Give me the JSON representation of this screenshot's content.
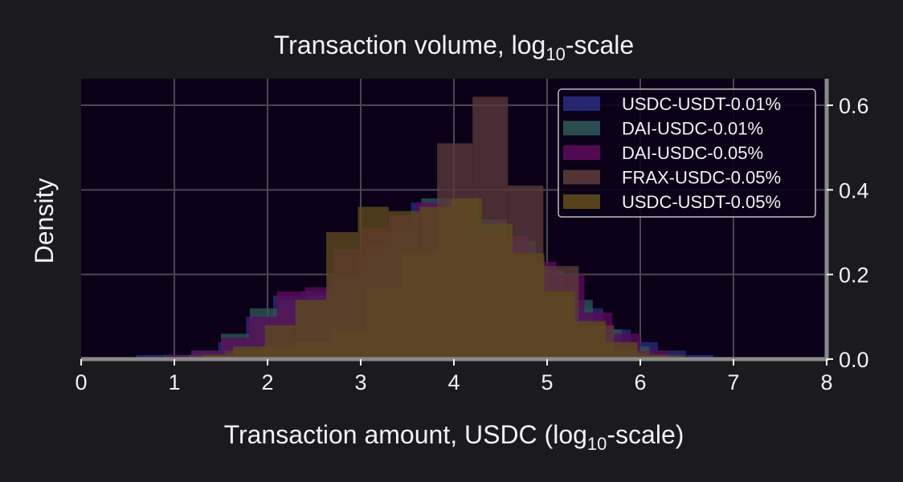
{
  "chart_data": {
    "type": "bar",
    "title": {
      "main": "Transaction volume, log",
      "sub": "10",
      "tail": "-scale"
    },
    "xlabel": {
      "main": "Transaction amount, USDC (log",
      "sub": "10",
      "tail": "-scale)"
    },
    "ylabel": "Density",
    "xlim": [
      0,
      8
    ],
    "ylim": [
      0,
      0.65
    ],
    "xticks": [
      "0",
      "1",
      "2",
      "3",
      "4",
      "5",
      "6",
      "7",
      "8"
    ],
    "yticks": [
      "0.0",
      "0.2",
      "0.4",
      "0.6"
    ],
    "grid": true,
    "legend_position": "top-right",
    "series": [
      {
        "name": "USDC-USDT-0.01%",
        "color": "#2a2a7a",
        "bins": [
          [
            0.59,
            0.88,
            0.01
          ],
          [
            0.88,
            1.18,
            0.01
          ],
          [
            1.18,
            1.47,
            0.02
          ],
          [
            1.47,
            1.77,
            0.04
          ],
          [
            1.77,
            2.06,
            0.1
          ],
          [
            2.06,
            2.36,
            0.15
          ],
          [
            2.36,
            2.65,
            0.16
          ],
          [
            2.65,
            2.95,
            0.2
          ],
          [
            2.95,
            3.24,
            0.24
          ],
          [
            3.24,
            3.54,
            0.3
          ],
          [
            3.54,
            3.83,
            0.37
          ],
          [
            3.83,
            4.13,
            0.36
          ],
          [
            4.13,
            4.42,
            0.33
          ],
          [
            4.42,
            4.72,
            0.28
          ],
          [
            4.72,
            5.01,
            0.22
          ],
          [
            5.01,
            5.31,
            0.17
          ],
          [
            5.31,
            5.6,
            0.12
          ],
          [
            5.6,
            5.9,
            0.07
          ],
          [
            5.9,
            6.19,
            0.04
          ],
          [
            6.19,
            6.49,
            0.02
          ],
          [
            6.49,
            6.78,
            0.01
          ]
        ]
      },
      {
        "name": "DAI-USDC-0.01%",
        "color": "#2d5656",
        "bins": [
          [
            0.89,
            1.2,
            0.01
          ],
          [
            1.2,
            1.5,
            0.02
          ],
          [
            1.5,
            1.81,
            0.06
          ],
          [
            1.81,
            2.12,
            0.12
          ],
          [
            2.12,
            2.42,
            0.14
          ],
          [
            2.42,
            2.73,
            0.15
          ],
          [
            2.73,
            3.04,
            0.2
          ],
          [
            3.04,
            3.34,
            0.27
          ],
          [
            3.34,
            3.65,
            0.32
          ],
          [
            3.65,
            3.96,
            0.38
          ],
          [
            3.96,
            4.26,
            0.38
          ],
          [
            4.26,
            4.57,
            0.33
          ],
          [
            4.57,
            4.88,
            0.28
          ],
          [
            4.88,
            5.18,
            0.21
          ],
          [
            5.18,
            5.49,
            0.14
          ],
          [
            5.49,
            5.8,
            0.07
          ],
          [
            5.8,
            6.1,
            0.03
          ],
          [
            6.1,
            6.41,
            0.01
          ]
        ]
      },
      {
        "name": "DAI-USDC-0.05%",
        "color": "#5a0a5a",
        "bins": [
          [
            0.9,
            1.2,
            0.01
          ],
          [
            1.2,
            1.5,
            0.02
          ],
          [
            1.5,
            1.8,
            0.05
          ],
          [
            1.8,
            2.1,
            0.1
          ],
          [
            2.1,
            2.4,
            0.16
          ],
          [
            2.4,
            2.7,
            0.17
          ],
          [
            2.7,
            3.0,
            0.26
          ],
          [
            3.0,
            3.3,
            0.31
          ],
          [
            3.3,
            3.6,
            0.34
          ],
          [
            3.6,
            3.9,
            0.37
          ],
          [
            3.9,
            4.2,
            0.36
          ],
          [
            4.2,
            4.5,
            0.3
          ],
          [
            4.5,
            4.8,
            0.29
          ],
          [
            4.8,
            5.1,
            0.23
          ],
          [
            5.1,
            5.4,
            0.2
          ],
          [
            5.4,
            5.7,
            0.11
          ],
          [
            5.7,
            6.0,
            0.06
          ],
          [
            6.0,
            6.3,
            0.02
          ]
        ]
      },
      {
        "name": "FRAX-USDC-0.05%",
        "color": "#5a3a3a",
        "bins": [
          [
            1.15,
            1.54,
            0.01
          ],
          [
            1.54,
            1.92,
            0.02
          ],
          [
            1.92,
            2.3,
            0.03
          ],
          [
            2.3,
            2.68,
            0.04
          ],
          [
            2.68,
            3.06,
            0.07
          ],
          [
            3.06,
            3.44,
            0.17
          ],
          [
            3.44,
            3.82,
            0.25
          ],
          [
            3.82,
            4.2,
            0.51
          ],
          [
            4.2,
            4.58,
            0.62
          ],
          [
            4.58,
            4.96,
            0.41
          ],
          [
            4.96,
            5.34,
            0.22
          ],
          [
            5.34,
            5.72,
            0.08
          ],
          [
            5.72,
            6.1,
            0.02
          ],
          [
            6.1,
            6.48,
            0.01
          ]
        ]
      },
      {
        "name": "USDC-USDT-0.05%",
        "color": "#5e4a1e",
        "bins": [
          [
            1.3,
            1.63,
            0.01
          ],
          [
            1.63,
            1.97,
            0.03
          ],
          [
            1.97,
            2.3,
            0.08
          ],
          [
            2.3,
            2.63,
            0.14
          ],
          [
            2.63,
            2.97,
            0.3
          ],
          [
            2.97,
            3.3,
            0.36
          ],
          [
            3.3,
            3.63,
            0.35
          ],
          [
            3.63,
            3.97,
            0.36
          ],
          [
            3.97,
            4.3,
            0.38
          ],
          [
            4.3,
            4.63,
            0.32
          ],
          [
            4.63,
            4.97,
            0.25
          ],
          [
            4.97,
            5.3,
            0.16
          ],
          [
            5.3,
            5.63,
            0.09
          ],
          [
            5.63,
            5.97,
            0.04
          ],
          [
            5.97,
            6.3,
            0.01
          ]
        ]
      }
    ]
  }
}
